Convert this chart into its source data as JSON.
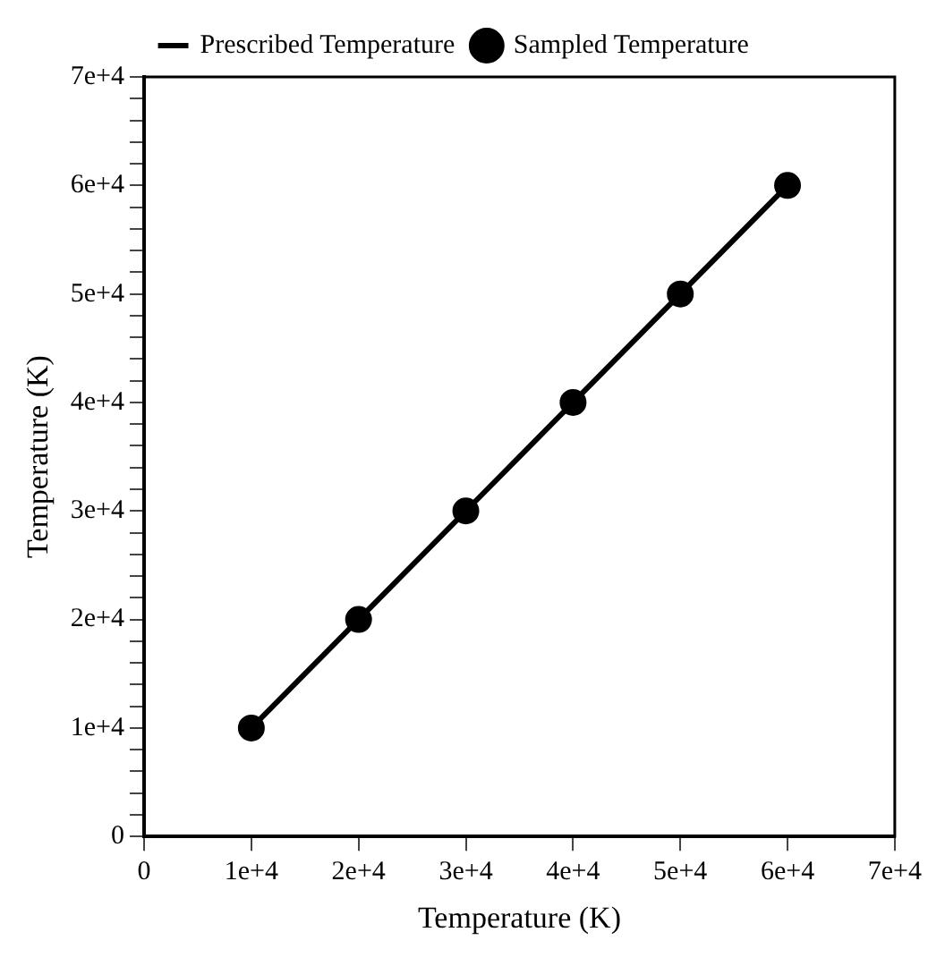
{
  "chart_data": {
    "type": "line",
    "xlabel": "Temperature (K)",
    "ylabel": "Temperature (K)",
    "x": [
      10000,
      20000,
      30000,
      40000,
      50000,
      60000
    ],
    "series": [
      {
        "name": "Prescribed Temperature",
        "type": "line",
        "color": "#000000",
        "line_style": "solid",
        "values": [
          10000,
          20000,
          30000,
          40000,
          50000,
          60000
        ]
      },
      {
        "name": "Sampled Temperature",
        "type": "scatter",
        "color": "#000000",
        "marker": "circle",
        "values": [
          10000,
          20000,
          30000,
          40000,
          50000,
          60000
        ]
      }
    ],
    "xlim": [
      0,
      70000
    ],
    "xticks": [
      0,
      {
        "value": 10000,
        "label": "1e+4"
      },
      {
        "value": 20000,
        "label": "2e+4"
      },
      {
        "value": 30000,
        "label": "3e+4"
      },
      {
        "value": 40000,
        "label": "4e+4"
      },
      {
        "value": 50000,
        "label": "5e+4"
      },
      {
        "value": 60000,
        "label": "6e+4"
      },
      {
        "value": 70000,
        "label": "7e+4"
      }
    ],
    "ylim": [
      0,
      70000
    ],
    "yticks": [
      0,
      {
        "value": 2000,
        "label": null
      },
      {
        "value": 4000,
        "label": null
      },
      {
        "value": 6000,
        "label": null
      },
      {
        "value": 8000,
        "label": null
      },
      {
        "value": 10000,
        "label": "1e+4"
      },
      {
        "value": 12000,
        "label": null
      },
      {
        "value": 14000,
        "label": null
      },
      {
        "value": 16000,
        "label": null
      },
      {
        "value": 18000,
        "label": null
      },
      {
        "value": 20000,
        "label": "2e+4"
      },
      {
        "value": 22000,
        "label": null
      },
      {
        "value": 24000,
        "label": null
      },
      {
        "value": 26000,
        "label": null
      },
      {
        "value": 28000,
        "label": null
      },
      {
        "value": 30000,
        "label": "3e+4"
      },
      {
        "value": 32000,
        "label": null
      },
      {
        "value": 34000,
        "label": null
      },
      {
        "value": 36000,
        "label": null
      },
      {
        "value": 38000,
        "label": null
      },
      {
        "value": 40000,
        "label": "4e+4"
      },
      {
        "value": 42000,
        "label": null
      },
      {
        "value": 44000,
        "label": null
      },
      {
        "value": 46000,
        "label": null
      },
      {
        "value": 48000,
        "label": null
      },
      {
        "value": 50000,
        "label": "5e+4"
      },
      {
        "value": 52000,
        "label": null
      },
      {
        "value": 54000,
        "label": null
      },
      {
        "value": 56000,
        "label": null
      },
      {
        "value": 58000,
        "label": null
      },
      {
        "value": 60000,
        "label": "6e+4"
      },
      {
        "value": 62000,
        "label": null
      },
      {
        "value": 64000,
        "label": null
      },
      {
        "value": 66000,
        "label": null
      },
      {
        "value": 68000,
        "label": null
      },
      {
        "value": 70000,
        "label": "7e+4"
      }
    ],
    "grid": false,
    "legend": "top"
  }
}
